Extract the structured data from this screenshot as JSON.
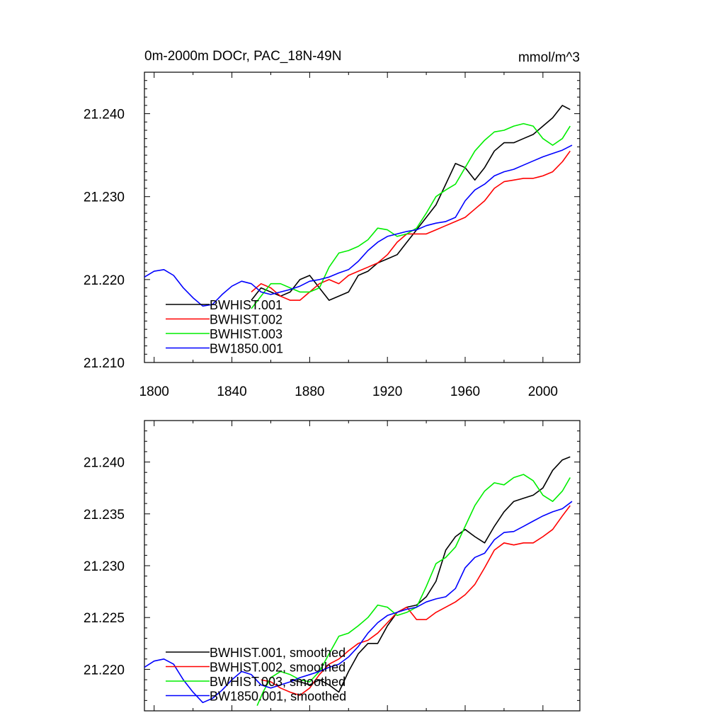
{
  "chart_data": [
    {
      "type": "line",
      "title_left": "0m-2000m DOCr, PAC_18N-49N",
      "title_right": "mmol/m^3",
      "xlabel": "",
      "ylabel": "",
      "xlim": [
        1795,
        2019
      ],
      "ylim": [
        21.21,
        21.245
      ],
      "x_ticks": [
        1800,
        1840,
        1880,
        1920,
        1960,
        2000
      ],
      "x_tick_labels": [
        "1800",
        "1840",
        "1880",
        "1920",
        "1960",
        "2000"
      ],
      "y_ticks": [
        21.21,
        21.22,
        21.23,
        21.24
      ],
      "y_tick_labels": [
        "21.210",
        "21.220",
        "21.230",
        "21.240"
      ],
      "legend": {
        "placement": "bottom-left",
        "entries": [
          "BWHIST.001",
          "BWHIST.002",
          "BWHIST.003",
          "BW1850.001"
        ]
      },
      "series": [
        {
          "name": "BWHIST.001",
          "color": "#000000",
          "x": [
            1850,
            1855,
            1860,
            1865,
            1870,
            1875,
            1880,
            1885,
            1890,
            1895,
            1900,
            1905,
            1910,
            1915,
            1920,
            1925,
            1930,
            1935,
            1940,
            1945,
            1950,
            1955,
            1960,
            1965,
            1970,
            1975,
            1980,
            1985,
            1990,
            1995,
            2000,
            2005,
            2010,
            2014
          ],
          "values": [
            21.2175,
            21.219,
            21.2185,
            21.218,
            21.2185,
            21.22,
            21.2205,
            21.219,
            21.2175,
            21.218,
            21.2185,
            21.2205,
            21.221,
            21.222,
            21.2225,
            21.223,
            21.2245,
            21.226,
            21.2275,
            21.229,
            21.2315,
            21.234,
            21.2335,
            21.232,
            21.2335,
            21.2355,
            21.2365,
            21.2365,
            21.237,
            21.2375,
            21.2385,
            21.2395,
            21.241,
            21.2405
          ]
        },
        {
          "name": "BWHIST.002",
          "color": "#ff0000",
          "x": [
            1850,
            1855,
            1860,
            1865,
            1870,
            1875,
            1880,
            1885,
            1890,
            1895,
            1900,
            1905,
            1910,
            1915,
            1920,
            1925,
            1930,
            1935,
            1940,
            1945,
            1950,
            1955,
            1960,
            1965,
            1970,
            1975,
            1980,
            1985,
            1990,
            1995,
            2000,
            2005,
            2010,
            2014
          ],
          "values": [
            21.2185,
            21.2195,
            21.219,
            21.218,
            21.2175,
            21.2175,
            21.2185,
            21.2195,
            21.22,
            21.2195,
            21.2205,
            21.221,
            21.2215,
            21.222,
            21.223,
            21.2245,
            21.2255,
            21.2255,
            21.2255,
            21.226,
            21.2265,
            21.227,
            21.2275,
            21.2285,
            21.2295,
            21.231,
            21.2318,
            21.232,
            21.2322,
            21.2322,
            21.2325,
            21.233,
            21.2342,
            21.2355
          ]
        },
        {
          "name": "BWHIST.003",
          "color": "#00ee00",
          "x": [
            1850,
            1855,
            1860,
            1865,
            1870,
            1875,
            1880,
            1885,
            1890,
            1895,
            1900,
            1905,
            1910,
            1915,
            1920,
            1925,
            1930,
            1935,
            1940,
            1945,
            1950,
            1955,
            1960,
            1965,
            1970,
            1975,
            1980,
            1985,
            1990,
            1995,
            2000,
            2005,
            2010,
            2014
          ],
          "values": [
            21.2165,
            21.218,
            21.2195,
            21.2195,
            21.219,
            21.2185,
            21.2185,
            21.219,
            21.2215,
            21.2232,
            21.2235,
            21.224,
            21.2248,
            21.2262,
            21.226,
            21.2252,
            21.2255,
            21.2262,
            21.228,
            21.23,
            21.2308,
            21.2315,
            21.2335,
            21.2355,
            21.2368,
            21.2378,
            21.238,
            21.2385,
            21.2388,
            21.2385,
            21.237,
            21.2362,
            21.237,
            21.2385
          ]
        },
        {
          "name": "BW1850.001",
          "color": "#0000ff",
          "x": [
            1795,
            1800,
            1805,
            1810,
            1815,
            1820,
            1825,
            1830,
            1835,
            1840,
            1845,
            1850,
            1855,
            1860,
            1865,
            1870,
            1875,
            1880,
            1885,
            1890,
            1895,
            1900,
            1905,
            1910,
            1915,
            1920,
            1925,
            1930,
            1935,
            1940,
            1945,
            1950,
            1955,
            1960,
            1965,
            1970,
            1975,
            1980,
            1985,
            1990,
            1995,
            2000,
            2005,
            2010,
            2015
          ],
          "values": [
            21.2203,
            21.221,
            21.2212,
            21.2205,
            21.219,
            21.2178,
            21.2168,
            21.217,
            21.2182,
            21.2192,
            21.2198,
            21.2195,
            21.2185,
            21.2182,
            21.2185,
            21.2188,
            21.2192,
            21.2198,
            21.22,
            21.2203,
            21.2208,
            21.2212,
            21.2222,
            21.2235,
            21.2245,
            21.2252,
            21.2255,
            21.2258,
            21.226,
            21.2265,
            21.2268,
            21.227,
            21.2275,
            21.2295,
            21.2308,
            21.2315,
            21.2325,
            21.233,
            21.2333,
            21.2338,
            21.2343,
            21.2348,
            21.2352,
            21.2356,
            21.2362
          ]
        }
      ]
    },
    {
      "type": "line",
      "title_left": "",
      "title_right": "",
      "xlabel": "",
      "ylabel": "",
      "xlim": [
        1795,
        2019
      ],
      "ylim": [
        21.216,
        21.244
      ],
      "x_ticks": [
        1800,
        1840,
        1880,
        1920,
        1960,
        2000
      ],
      "x_tick_labels": [],
      "y_ticks": [
        21.22,
        21.225,
        21.23,
        21.235,
        21.24
      ],
      "y_tick_labels": [
        "21.220",
        "21.225",
        "21.230",
        "21.235",
        "21.240"
      ],
      "legend": {
        "placement": "bottom-left",
        "entries": [
          "BWHIST.001, smoothed",
          "BWHIST.002, smoothed",
          "BWHIST.003, smoothed",
          "BW1850.001, smoothed"
        ]
      },
      "series": [
        {
          "name": "BWHIST.001, smoothed",
          "color": "#000000",
          "x": [
            1870,
            1875,
            1880,
            1885,
            1890,
            1895,
            1900,
            1905,
            1910,
            1915,
            1920,
            1925,
            1930,
            1935,
            1940,
            1945,
            1950,
            1955,
            1960,
            1965,
            1970,
            1975,
            1980,
            1985,
            1990,
            1995,
            2000,
            2005,
            2010,
            2014
          ],
          "values": [
            21.219,
            21.2188,
            21.2185,
            21.219,
            21.2185,
            21.2178,
            21.2198,
            21.2215,
            21.2225,
            21.2225,
            21.2242,
            21.2255,
            21.226,
            21.2262,
            21.227,
            21.2285,
            21.2315,
            21.2328,
            21.2335,
            21.2328,
            21.2322,
            21.2338,
            21.2352,
            21.2362,
            21.2365,
            21.2368,
            21.2375,
            21.2392,
            21.2402,
            21.2405
          ]
        },
        {
          "name": "BWHIST.002, smoothed",
          "color": "#ff0000",
          "x": [
            1855,
            1860,
            1865,
            1870,
            1875,
            1880,
            1885,
            1890,
            1895,
            1900,
            1905,
            1910,
            1915,
            1920,
            1925,
            1930,
            1935,
            1940,
            1945,
            1950,
            1955,
            1960,
            1965,
            1970,
            1975,
            1980,
            1985,
            1990,
            1995,
            2000,
            2005,
            2010,
            2014
          ],
          "values": [
            21.219,
            21.2188,
            21.2182,
            21.2178,
            21.2175,
            21.2182,
            21.2195,
            21.2205,
            21.221,
            21.2218,
            21.2225,
            21.2228,
            21.2235,
            21.2245,
            21.2255,
            21.226,
            21.2248,
            21.2248,
            21.2255,
            21.226,
            21.2265,
            21.2272,
            21.2282,
            21.2298,
            21.2315,
            21.2322,
            21.232,
            21.2322,
            21.2322,
            21.2328,
            21.2335,
            21.2348,
            21.2358
          ]
        },
        {
          "name": "BWHIST.003, smoothed",
          "color": "#00ee00",
          "x": [
            1853,
            1856,
            1860,
            1865,
            1870,
            1875,
            1880,
            1885,
            1890,
            1895,
            1900,
            1905,
            1910,
            1915,
            1920,
            1925,
            1930,
            1935,
            1940,
            1945,
            1950,
            1955,
            1960,
            1965,
            1970,
            1975,
            1980,
            1985,
            1990,
            1995,
            2000,
            2005,
            2010,
            2014
          ],
          "values": [
            21.2165,
            21.2178,
            21.2192,
            21.2198,
            21.2195,
            21.219,
            21.2188,
            21.2198,
            21.2215,
            21.2232,
            21.2235,
            21.2242,
            21.225,
            21.2262,
            21.226,
            21.2252,
            21.2255,
            21.226,
            21.228,
            21.2302,
            21.2308,
            21.2318,
            21.2338,
            21.2358,
            21.2372,
            21.238,
            21.2378,
            21.2385,
            21.2388,
            21.2382,
            21.2368,
            21.2362,
            21.2372,
            21.2385
          ]
        },
        {
          "name": "BW1850.001, smoothed",
          "color": "#0000ff",
          "x": [
            1795,
            1800,
            1805,
            1810,
            1815,
            1820,
            1825,
            1830,
            1835,
            1840,
            1845,
            1850,
            1855,
            1860,
            1865,
            1870,
            1875,
            1880,
            1885,
            1890,
            1895,
            1900,
            1905,
            1910,
            1915,
            1920,
            1925,
            1930,
            1935,
            1940,
            1945,
            1950,
            1955,
            1960,
            1965,
            1970,
            1975,
            1980,
            1985,
            1990,
            1995,
            2000,
            2005,
            2010,
            2015
          ],
          "values": [
            21.2202,
            21.2208,
            21.221,
            21.2205,
            21.219,
            21.2178,
            21.2168,
            21.2172,
            21.218,
            21.219,
            21.2198,
            21.2195,
            21.2185,
            21.2182,
            21.2185,
            21.2188,
            21.2192,
            21.2195,
            21.2198,
            21.2202,
            21.2205,
            21.2212,
            21.2222,
            21.2235,
            21.2245,
            21.2252,
            21.2255,
            21.2258,
            21.226,
            21.2265,
            21.2268,
            21.227,
            21.2278,
            21.2298,
            21.2308,
            21.2312,
            21.2325,
            21.2332,
            21.2333,
            21.2338,
            21.2343,
            21.2348,
            21.2352,
            21.2355,
            21.2362
          ]
        }
      ]
    }
  ]
}
